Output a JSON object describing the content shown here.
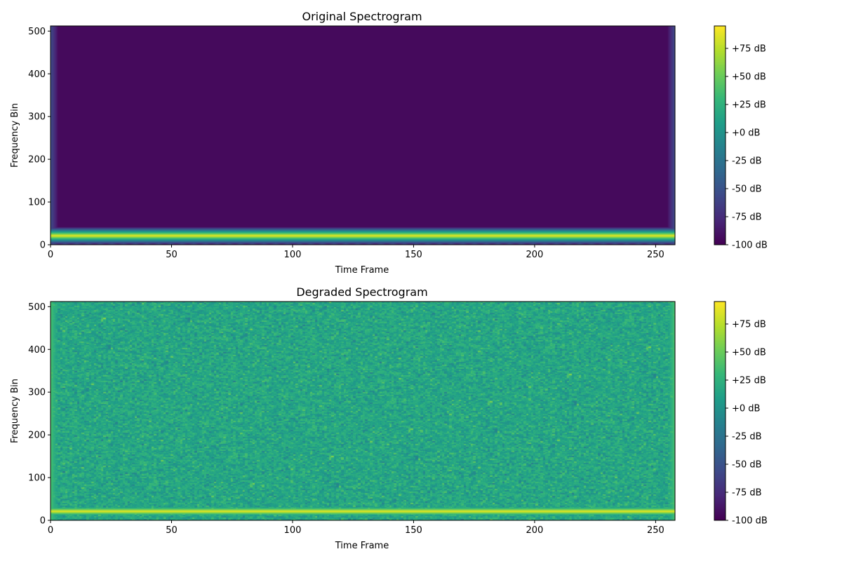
{
  "chart_data": [
    {
      "type": "heatmap",
      "title": "Original Spectrogram",
      "xlabel": "Time Frame",
      "ylabel": "Frequency Bin",
      "xlim": [
        0,
        258
      ],
      "ylim": [
        0,
        512
      ],
      "xticks": [
        0,
        50,
        100,
        150,
        200,
        250
      ],
      "yticks": [
        0,
        100,
        200,
        300,
        400,
        500
      ],
      "colormap": "viridis",
      "color_range_db": [
        -100,
        95
      ],
      "colorbar_ticks": [
        "+75 dB",
        "+50 dB",
        "+25 dB",
        "+0 dB",
        "-25 dB",
        "-50 dB",
        "-75 dB",
        "-100 dB"
      ],
      "colorbar_tick_values": [
        75,
        50,
        25,
        0,
        -25,
        -50,
        -75,
        -100
      ],
      "background_db": -95,
      "tone_frequency_bin": 21,
      "tone_db": 90,
      "noise_std_db": 0,
      "edge_artifacts": true
    },
    {
      "type": "heatmap",
      "title": "Degraded Spectrogram",
      "xlabel": "Time Frame",
      "ylabel": "Frequency Bin",
      "xlim": [
        0,
        258
      ],
      "ylim": [
        0,
        512
      ],
      "xticks": [
        0,
        50,
        100,
        150,
        200,
        250
      ],
      "yticks": [
        0,
        100,
        200,
        300,
        400,
        500
      ],
      "colormap": "viridis",
      "color_range_db": [
        -100,
        95
      ],
      "colorbar_ticks": [
        "+75 dB",
        "+50 dB",
        "+25 dB",
        "+0 dB",
        "-25 dB",
        "-50 dB",
        "-75 dB",
        "-100 dB"
      ],
      "colorbar_tick_values": [
        75,
        50,
        25,
        0,
        -25,
        -50,
        -75,
        -100
      ],
      "background_db": 15,
      "tone_frequency_bin": 21,
      "tone_db": 90,
      "noise_std_db": 12,
      "edge_artifacts": true
    }
  ]
}
